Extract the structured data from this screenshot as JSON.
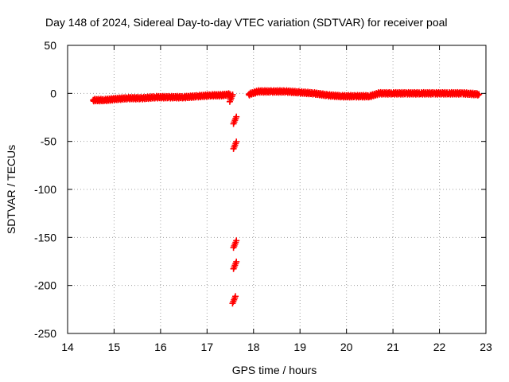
{
  "chart_data": {
    "type": "scatter",
    "title": "Day 148 of 2024, Sidereal Day-to-day VTEC variation (SDTVAR) for receiver poal",
    "xlabel": "GPS time / hours",
    "ylabel": "SDTVAR / TECUs",
    "xlim": [
      14,
      23
    ],
    "ylim": [
      -250,
      50
    ],
    "xticks": [
      14,
      15,
      16,
      17,
      18,
      19,
      20,
      21,
      22,
      23
    ],
    "yticks": [
      50,
      0,
      -50,
      -100,
      -150,
      -200,
      -250
    ],
    "grid": true,
    "marker_color": "#ff0000",
    "series": [
      {
        "name": "SDTVAR",
        "segments": [
          {
            "x": [
              14.55,
              14.8,
              15.0,
              15.3,
              15.6,
              15.9,
              16.2,
              16.5,
              16.8,
              17.1,
              17.3,
              17.5
            ],
            "y": [
              -7,
              -7,
              -6,
              -5,
              -5,
              -4,
              -4,
              -4,
              -3,
              -2,
              -2,
              -1
            ]
          },
          {
            "x": [
              17.9,
              18.1,
              18.4,
              18.7,
              19.0,
              19.3,
              19.6,
              19.9,
              20.2,
              20.5,
              20.7,
              21.0,
              21.3,
              21.6,
              21.9,
              22.2,
              22.5,
              22.85
            ],
            "y": [
              -1,
              2,
              2,
              2,
              1,
              0,
              -2,
              -3,
              -3,
              -3,
              0,
              0,
              0,
              0,
              0,
              0,
              0,
              -1
            ]
          }
        ],
        "outliers": [
          {
            "x": 17.52,
            "y": -5
          },
          {
            "x": 17.6,
            "y": -28
          },
          {
            "x": 17.6,
            "y": -54
          },
          {
            "x": 17.6,
            "y": -157
          },
          {
            "x": 17.6,
            "y": -179
          },
          {
            "x": 17.58,
            "y": -215
          }
        ]
      }
    ]
  }
}
